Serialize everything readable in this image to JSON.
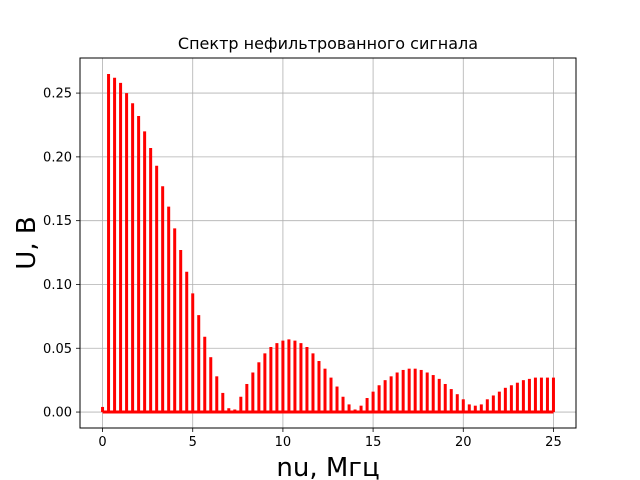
{
  "chart_data": {
    "type": "bar",
    "title": "Спектр нефильтрованного сигнала",
    "xlabel": "nu, Мгц",
    "ylabel": "U, В",
    "xlim": [
      -1.25,
      26.25
    ],
    "ylim": [
      -0.0125,
      0.2775
    ],
    "xticks": [
      0,
      5,
      10,
      15,
      20,
      25
    ],
    "xtick_labels": [
      "0",
      "5",
      "10",
      "15",
      "20",
      "25"
    ],
    "yticks": [
      0.0,
      0.05,
      0.1,
      0.15,
      0.2,
      0.25
    ],
    "ytick_labels": [
      "0.00",
      "0.05",
      "0.10",
      "0.15",
      "0.20",
      "0.25"
    ],
    "grid": true,
    "color": "#ff0000",
    "series": [
      {
        "x": [
          0.0,
          0.333,
          0.667,
          1.0,
          1.333,
          1.667,
          2.0,
          2.333,
          2.667,
          3.0,
          3.333,
          3.667,
          4.0,
          4.333,
          4.667,
          5.0,
          5.333,
          5.667,
          6.0,
          6.333,
          6.667,
          7.0,
          7.333,
          7.667,
          8.0,
          8.333,
          8.667,
          9.0,
          9.333,
          9.667,
          10.0,
          10.333,
          10.667,
          11.0,
          11.333,
          11.667,
          12.0,
          12.333,
          12.667,
          13.0,
          13.333,
          13.667,
          14.0,
          14.333,
          14.667,
          15.0,
          15.333,
          15.667,
          16.0,
          16.333,
          16.667,
          17.0,
          17.333,
          17.667,
          18.0,
          18.333,
          18.667,
          19.0,
          19.333,
          19.667,
          20.0,
          20.333,
          20.667,
          21.0,
          21.333,
          21.667,
          22.0,
          22.333,
          22.667,
          23.0,
          23.333,
          23.667,
          24.0,
          24.333,
          24.667,
          25.0
        ],
        "values": [
          0.004,
          0.265,
          0.262,
          0.258,
          0.25,
          0.242,
          0.232,
          0.22,
          0.207,
          0.193,
          0.177,
          0.161,
          0.144,
          0.127,
          0.11,
          0.093,
          0.076,
          0.059,
          0.043,
          0.028,
          0.015,
          0.003,
          0.002,
          0.012,
          0.022,
          0.031,
          0.039,
          0.046,
          0.051,
          0.054,
          0.056,
          0.057,
          0.056,
          0.054,
          0.051,
          0.046,
          0.04,
          0.034,
          0.027,
          0.02,
          0.012,
          0.006,
          0.002,
          0.005,
          0.011,
          0.016,
          0.021,
          0.025,
          0.028,
          0.031,
          0.033,
          0.034,
          0.034,
          0.033,
          0.031,
          0.029,
          0.026,
          0.022,
          0.018,
          0.014,
          0.01,
          0.006,
          0.005,
          0.006,
          0.01,
          0.013,
          0.016,
          0.019,
          0.021,
          0.023,
          0.025,
          0.026,
          0.027,
          0.027,
          0.027,
          0.027
        ]
      }
    ]
  }
}
